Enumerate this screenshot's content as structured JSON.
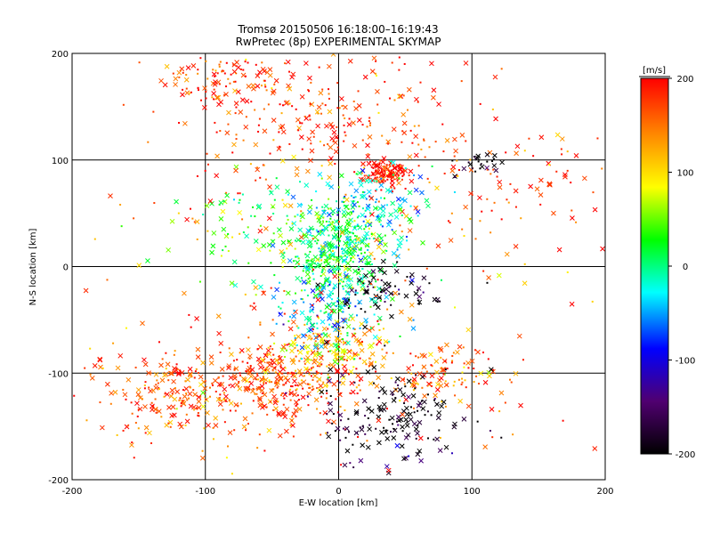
{
  "chart_data": {
    "type": "scatter",
    "title": "Tromsø 20150506 16:18:00–16:19:43",
    "subtitle": "RwPretec (8p) EXPERIMENTAL SKYMAP",
    "xlabel": "E-W location [km]",
    "ylabel": "N-S location [km]",
    "xlim": [
      -200,
      200
    ],
    "ylim": [
      -200,
      200
    ],
    "x_ticks": [
      "-200",
      "-100",
      "0",
      "100",
      "200"
    ],
    "y_ticks": [
      "-200",
      "-100",
      "0",
      "100",
      "200"
    ],
    "grid": true,
    "colorbar": {
      "label": "[m/s]",
      "range": [
        -200,
        200
      ],
      "ticks": [
        "200",
        "100",
        "0",
        "-100",
        "-200"
      ],
      "colors": [
        "#000000",
        "#500070",
        "#0000ff",
        "#00ffff",
        "#00ff00",
        "#ffff00",
        "#ff8000",
        "#ff0000"
      ]
    },
    "marker_types": [
      "x",
      "dot"
    ],
    "clusters": [
      {
        "x": -45,
        "y": -110,
        "sx": 30,
        "sy": 20,
        "vel": 175,
        "n": 320
      },
      {
        "x": -120,
        "y": -120,
        "sx": 35,
        "sy": 22,
        "vel": 165,
        "n": 200
      },
      {
        "x": 75,
        "y": -100,
        "sx": 22,
        "sy": 14,
        "vel": 150,
        "n": 110
      },
      {
        "x": 35,
        "y": 88,
        "sx": 9,
        "sy": 7,
        "vel": 190,
        "n": 130
      },
      {
        "x": -10,
        "y": 140,
        "sx": 55,
        "sy": 30,
        "vel": 175,
        "n": 250
      },
      {
        "x": -80,
        "y": 175,
        "sx": 25,
        "sy": 18,
        "vel": 185,
        "n": 90
      },
      {
        "x": 140,
        "y": 80,
        "sx": 40,
        "sy": 25,
        "vel": 175,
        "n": 80
      },
      {
        "x": 0,
        "y": 10,
        "sx": 18,
        "sy": 25,
        "vel": 10,
        "n": 380
      },
      {
        "x": 20,
        "y": 55,
        "sx": 25,
        "sy": 18,
        "vel": -20,
        "n": 150
      },
      {
        "x": -5,
        "y": -80,
        "sx": 22,
        "sy": 15,
        "vel": 110,
        "n": 180
      },
      {
        "x": 40,
        "y": -140,
        "sx": 30,
        "sy": 25,
        "vel": -190,
        "n": 170
      },
      {
        "x": 35,
        "y": -25,
        "sx": 20,
        "sy": 12,
        "vel": -190,
        "n": 80
      },
      {
        "x": 105,
        "y": 95,
        "sx": 10,
        "sy": 6,
        "vel": -200,
        "n": 25
      },
      {
        "x": -10,
        "y": -40,
        "sx": 20,
        "sy": 18,
        "vel": -40,
        "n": 120
      },
      {
        "x": -40,
        "y": 30,
        "sx": 40,
        "sy": 30,
        "vel": 40,
        "n": 140
      },
      {
        "x": 0,
        "y": 0,
        "sx": 110,
        "sy": 110,
        "vel": 160,
        "n": 220
      }
    ]
  }
}
